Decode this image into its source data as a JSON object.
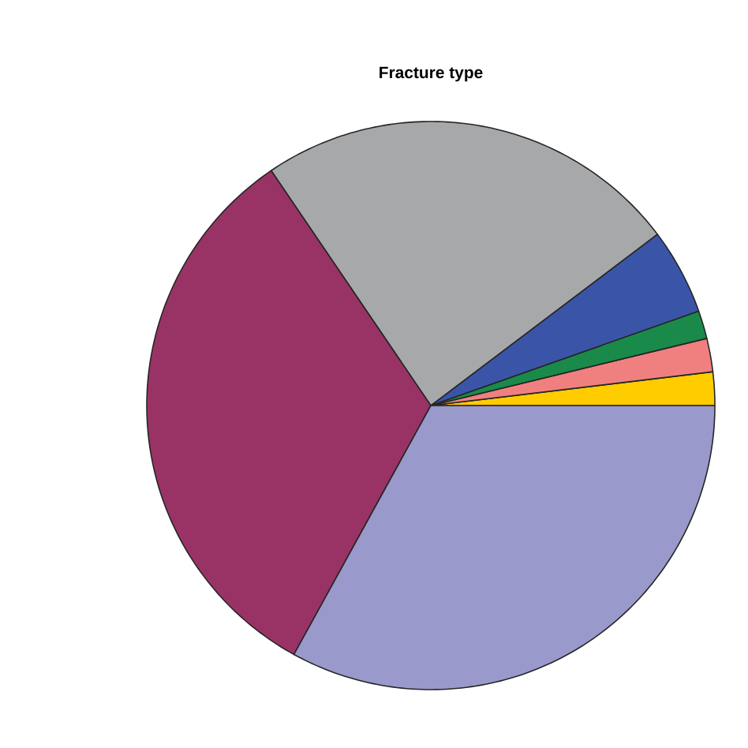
{
  "chart_data": {
    "type": "pie",
    "title": "Fracture type",
    "categories": [
      null,
      null,
      null,
      null,
      null,
      null,
      null
    ],
    "values": [
      1.9,
      1.9,
      1.6,
      4.9,
      24.2,
      32.5,
      33.0
    ],
    "colors": [
      "#ffcc00",
      "#f08080",
      "#1a8a4a",
      "#3a55a8",
      "#a7a8aa",
      "#993366",
      "#9999cc"
    ]
  }
}
